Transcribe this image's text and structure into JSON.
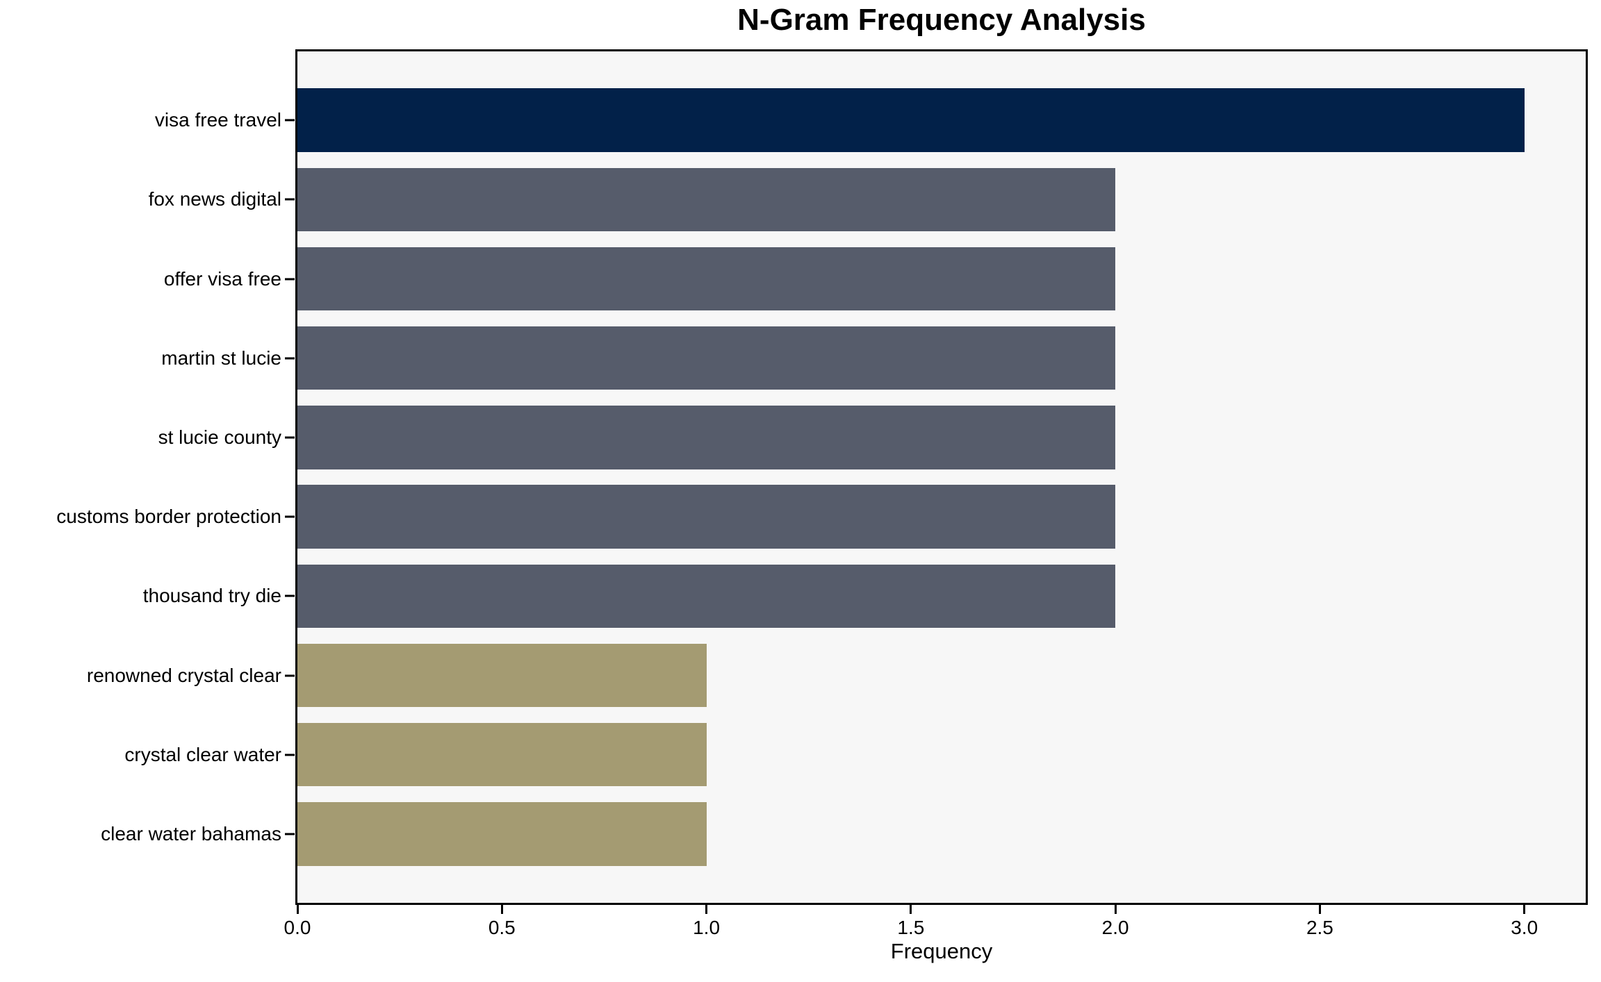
{
  "chart_data": {
    "type": "bar",
    "orientation": "horizontal",
    "title": "N-Gram Frequency Analysis",
    "xlabel": "Frequency",
    "ylabel": "",
    "categories": [
      "visa free travel",
      "fox news digital",
      "offer visa free",
      "martin st lucie",
      "st lucie county",
      "customs border protection",
      "thousand try die",
      "renowned crystal clear",
      "crystal clear water",
      "clear water bahamas"
    ],
    "values": [
      3,
      2,
      2,
      2,
      2,
      2,
      2,
      1,
      1,
      1
    ],
    "bar_colors": [
      "#022149",
      "#565c6b",
      "#565c6b",
      "#565c6b",
      "#565c6b",
      "#565c6b",
      "#565c6b",
      "#a49b72",
      "#a49b72",
      "#a49b72"
    ],
    "xlim": [
      0,
      3.15
    ],
    "xtick_values": [
      0,
      0.5,
      1,
      1.5,
      2,
      2.5,
      3
    ],
    "xtick_labels": [
      "0.0",
      "0.5",
      "1.0",
      "1.5",
      "2.0",
      "2.5",
      "3.0"
    ],
    "grid": false,
    "legend": "none",
    "plot_background": "#f7f7f7",
    "axis_color": "#000000",
    "bar_height_ratio": 0.8
  }
}
